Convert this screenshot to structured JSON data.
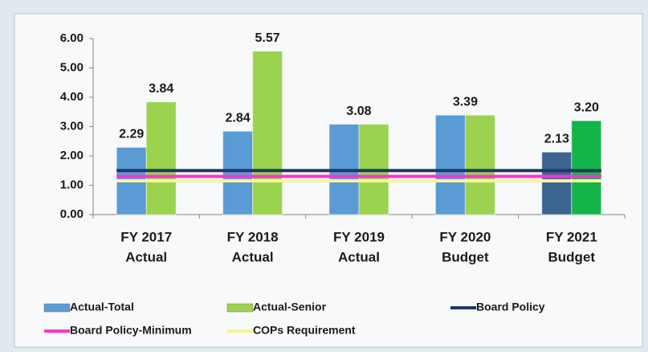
{
  "chart_data": {
    "type": "bar",
    "categories": [
      [
        "FY 2017",
        "Actual"
      ],
      [
        "FY 2018",
        "Actual"
      ],
      [
        "FY 2019",
        "Actual"
      ],
      [
        "FY 2020",
        "Budget"
      ],
      [
        "FY 2021",
        "Budget"
      ]
    ],
    "series": [
      {
        "name": "Actual-Total",
        "type": "bar",
        "color": "#5b9bd5",
        "colors": [
          "#5b9bd5",
          "#5b9bd5",
          "#5b9bd5",
          "#5b9bd5",
          "#3c6491"
        ],
        "values": [
          2.29,
          2.84,
          3.08,
          3.39,
          2.13
        ],
        "value_labels": [
          "2.29",
          "2.84",
          null,
          null,
          "2.13"
        ]
      },
      {
        "name": "Actual-Senior",
        "type": "bar",
        "color": "#9bd34f",
        "colors": [
          "#9bd34f",
          "#9bd34f",
          "#9bd34f",
          "#9bd34f",
          "#14b44a"
        ],
        "values": [
          3.84,
          5.57,
          3.08,
          3.39,
          3.2
        ],
        "value_labels": [
          "3.84",
          "5.57",
          "3.08",
          "3.39",
          "3.20"
        ]
      },
      {
        "name": "Board Policy",
        "type": "line",
        "color": "#1f3864",
        "values": [
          1.5,
          1.5,
          1.5,
          1.5,
          1.5
        ]
      },
      {
        "name": "Board Policy-Minimum",
        "type": "line",
        "color": "#ff33cc",
        "values": [
          1.3,
          1.3,
          1.3,
          1.3,
          1.3
        ]
      },
      {
        "name": "COPs Requirement",
        "type": "line",
        "color": "#f5f59a",
        "values": [
          1.15,
          1.15,
          1.15,
          1.15,
          1.15
        ]
      }
    ],
    "ylim": [
      0,
      6
    ],
    "yticks": [
      {
        "value": 0,
        "label": "0.00"
      },
      {
        "value": 1,
        "label": "1.00"
      },
      {
        "value": 2,
        "label": "2.00"
      },
      {
        "value": 3,
        "label": "3.00"
      },
      {
        "value": 4,
        "label": "4.00"
      },
      {
        "value": 5,
        "label": "5.00"
      },
      {
        "value": 6,
        "label": "6.00"
      }
    ]
  }
}
